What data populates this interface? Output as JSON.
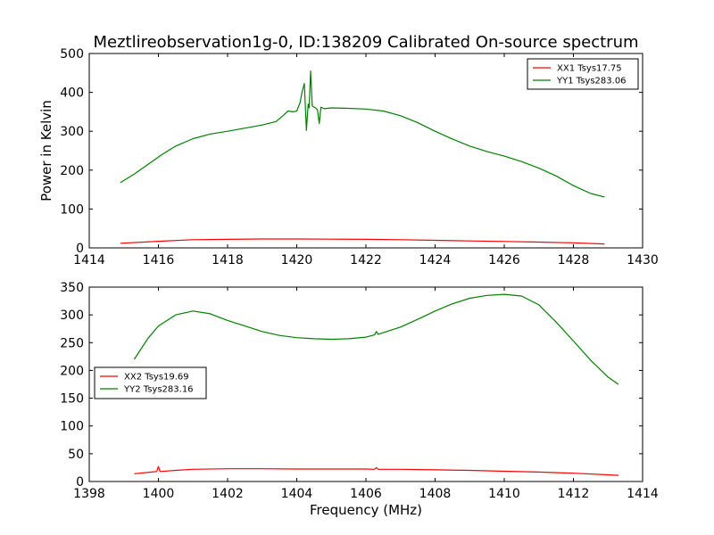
{
  "figure": {
    "title": "Meztlireobservation1g-0, ID:138209 Calibrated On-source spectrum"
  },
  "chart_data": [
    {
      "type": "line",
      "title": "Meztlireobservation1g-0, ID:138209 Calibrated On-source spectrum",
      "xlabel": "",
      "ylabel": "Power in Kelvin",
      "xlim": [
        1414,
        1430
      ],
      "ylim": [
        0,
        500
      ],
      "xticks": [
        1414,
        1416,
        1418,
        1420,
        1422,
        1424,
        1426,
        1428,
        1430
      ],
      "yticks": [
        0,
        100,
        200,
        300,
        400,
        500
      ],
      "grid": false,
      "legend": "top-right",
      "series": [
        {
          "name": "XX1 Tsys17.75",
          "color": "#ff0000",
          "x": [
            1414.9,
            1416,
            1417,
            1418,
            1419,
            1420,
            1421,
            1422,
            1423,
            1424,
            1425,
            1426,
            1427,
            1428,
            1428.9
          ],
          "y": [
            12,
            17,
            21,
            22,
            23,
            23,
            22.5,
            22,
            21,
            19.5,
            18,
            16.5,
            15,
            13,
            10
          ]
        },
        {
          "name": "YY1 Tsys283.06",
          "color": "#008000",
          "x": [
            1414.9,
            1415.3,
            1415.7,
            1416.1,
            1416.5,
            1417,
            1417.5,
            1418,
            1418.5,
            1419,
            1419.4,
            1419.6,
            1419.75,
            1419.9,
            1420.0,
            1420.1,
            1420.15,
            1420.22,
            1420.28,
            1420.33,
            1420.36,
            1420.4,
            1420.45,
            1420.5,
            1420.55,
            1420.6,
            1420.65,
            1420.7,
            1420.8,
            1421.0,
            1421.5,
            1422,
            1422.5,
            1423,
            1423.5,
            1424,
            1424.5,
            1425,
            1425.5,
            1426,
            1426.5,
            1427,
            1427.5,
            1428,
            1428.5,
            1428.9
          ],
          "y": [
            168,
            190,
            215,
            240,
            262,
            281,
            293,
            300,
            308,
            316,
            325,
            340,
            352,
            350,
            352,
            375,
            400,
            423,
            302,
            370,
            360,
            455,
            365,
            362,
            360,
            355,
            320,
            362,
            358,
            360,
            359,
            357,
            352,
            340,
            322,
            300,
            280,
            262,
            248,
            236,
            222,
            205,
            185,
            160,
            140,
            131
          ]
        }
      ]
    },
    {
      "type": "line",
      "title": "",
      "xlabel": "Frequency (MHz)",
      "ylabel": "",
      "xlim": [
        1398,
        1414
      ],
      "ylim": [
        0,
        350
      ],
      "xticks": [
        1398,
        1400,
        1402,
        1404,
        1406,
        1408,
        1410,
        1412,
        1414
      ],
      "yticks": [
        0,
        50,
        100,
        150,
        200,
        250,
        300,
        350
      ],
      "grid": false,
      "legend": "center-left",
      "series": [
        {
          "name": "XX2 Tsys19.69",
          "color": "#ff0000",
          "x": [
            1399.3,
            1399.8,
            1399.95,
            1400.0,
            1400.05,
            1400.5,
            1401,
            1402,
            1403,
            1404,
            1405,
            1406,
            1406.25,
            1406.3,
            1406.35,
            1407,
            1408,
            1409,
            1410,
            1411,
            1412,
            1413,
            1413.3
          ],
          "y": [
            14,
            17,
            18,
            27,
            18,
            20,
            22,
            23,
            23,
            22.5,
            22.5,
            22.5,
            22,
            25,
            22,
            22,
            21,
            20,
            18.5,
            17,
            15,
            12,
            11
          ]
        },
        {
          "name": "YY2 Tsys283.16",
          "color": "#008000",
          "x": [
            1399.3,
            1399.7,
            1400,
            1400.5,
            1401,
            1401.5,
            1402,
            1402.5,
            1403,
            1403.5,
            1404,
            1404.5,
            1405,
            1405.5,
            1406,
            1406.25,
            1406.3,
            1406.35,
            1406.5,
            1407,
            1407.5,
            1408,
            1408.5,
            1409,
            1409.5,
            1410,
            1410.5,
            1411,
            1411.5,
            1412,
            1412.5,
            1413,
            1413.3
          ],
          "y": [
            220,
            258,
            280,
            300,
            307,
            302,
            290,
            280,
            270,
            263,
            259,
            257,
            256,
            257,
            260,
            264,
            270,
            265,
            268,
            278,
            292,
            307,
            320,
            330,
            335,
            337,
            334,
            318,
            287,
            253,
            218,
            188,
            175
          ]
        }
      ]
    }
  ]
}
